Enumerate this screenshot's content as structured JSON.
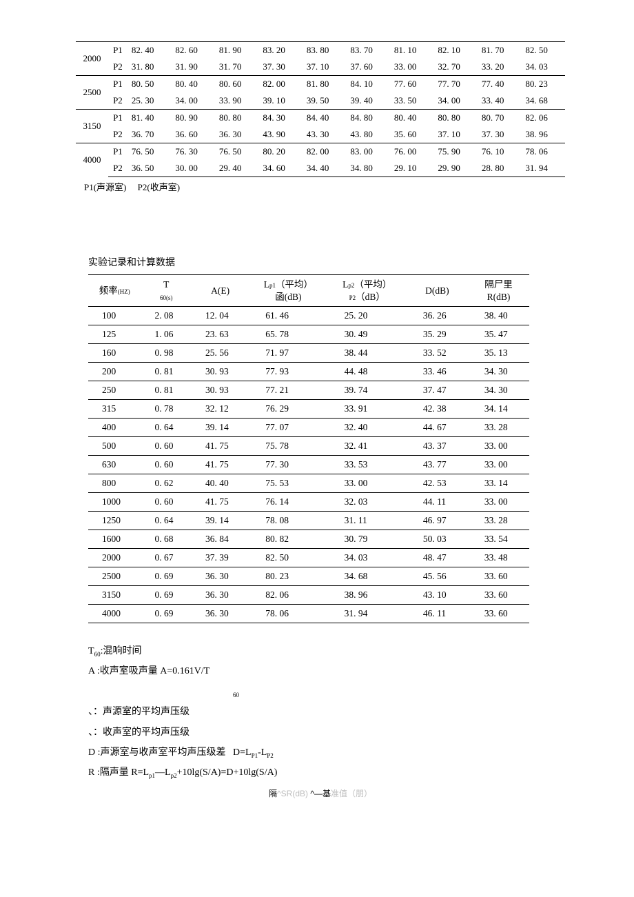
{
  "table1": {
    "groups": [
      {
        "freq": "2000",
        "rows": [
          {
            "p": "P1",
            "v": [
              "82. 40",
              "82. 60",
              "81. 90",
              "83. 20",
              "83. 80",
              "83. 70",
              "81. 10",
              "82. 10",
              "81. 70",
              "82. 50"
            ]
          },
          {
            "p": "P2",
            "v": [
              "31. 80",
              "31. 90",
              "31. 70",
              "37. 30",
              "37. 10",
              "37. 60",
              "33. 00",
              "32. 70",
              "33. 20",
              "34. 03"
            ]
          }
        ]
      },
      {
        "freq": "2500",
        "rows": [
          {
            "p": "P1",
            "v": [
              "80. 50",
              "80. 40",
              "80. 60",
              "82. 00",
              "81. 80",
              "84. 10",
              "77. 60",
              "77. 70",
              "77. 40",
              "80. 23"
            ]
          },
          {
            "p": "P2",
            "v": [
              "25. 30",
              "34. 00",
              "33. 90",
              "39. 10",
              "39. 50",
              "39. 40",
              "33. 50",
              "34. 00",
              "33. 40",
              "34. 68"
            ]
          }
        ]
      },
      {
        "freq": "3150",
        "rows": [
          {
            "p": "P1",
            "v": [
              "81. 40",
              "80. 90",
              "80. 80",
              "84. 30",
              "84. 40",
              "84. 80",
              "80. 40",
              "80. 80",
              "80. 70",
              "82. 06"
            ]
          },
          {
            "p": "P2",
            "v": [
              "36. 70",
              "36. 60",
              "36. 30",
              "43. 90",
              "43. 30",
              "43. 80",
              "35. 60",
              "37. 10",
              "37. 30",
              "38. 96"
            ]
          }
        ]
      },
      {
        "freq": "4000",
        "rows": [
          {
            "p": "P1",
            "v": [
              "76. 50",
              "76. 30",
              "76. 50",
              "80. 20",
              "82. 00",
              "83. 00",
              "76. 00",
              "75. 90",
              "76. 10",
              "78. 06"
            ]
          },
          {
            "p": "P2",
            "v": [
              "36. 50",
              "30. 00",
              "29. 40",
              "34. 60",
              "34. 40",
              "34. 80",
              "29. 10",
              "29. 90",
              "28. 80",
              "31. 94"
            ]
          }
        ]
      }
    ],
    "legend_p1": "P1(声源室)",
    "legend_p2": "P2(收声室)"
  },
  "table2": {
    "title": "实验记录和计算数据",
    "headers": {
      "h1": "频率",
      "h1_unit": "(HZ)",
      "h2": "T",
      "h2_sub": "60(s)",
      "h3": "A(E)",
      "h4a": "L",
      "h4b": "p1",
      "h4c": "（平均）",
      "h4d": "函(dB)",
      "h5a": "L",
      "h5b": "p2",
      "h5c": "（平均）",
      "h5_sub": "P2",
      "h5_unit": "（dB）",
      "h6": "D(dB)",
      "h7a": "隔尸里",
      "h7b": "R(dB)"
    },
    "rows": [
      [
        "100",
        "2. 08",
        "12. 04",
        "61. 46",
        "25. 20",
        "36. 26",
        "38. 40"
      ],
      [
        "125",
        "1. 06",
        "23. 63",
        "65. 78",
        "30. 49",
        "35. 29",
        "35. 47"
      ],
      [
        "160",
        "0. 98",
        "25. 56",
        "71. 97",
        "38. 44",
        "33. 52",
        "35. 13"
      ],
      [
        "200",
        "0. 81",
        "30. 93",
        "77. 93",
        "44. 48",
        "33. 46",
        "34. 30"
      ],
      [
        "250",
        "0. 81",
        "30. 93",
        "77. 21",
        "39. 74",
        "37. 47",
        "34. 30"
      ],
      [
        "315",
        "0. 78",
        "32. 12",
        "76. 29",
        "33. 91",
        "42. 38",
        "34. 14"
      ],
      [
        "400",
        "0. 64",
        "39. 14",
        "77. 07",
        "32. 40",
        "44. 67",
        "33. 28"
      ],
      [
        "500",
        "0. 60",
        "41. 75",
        "75. 78",
        "32. 41",
        "43. 37",
        "33. 00"
      ],
      [
        "630",
        "0. 60",
        "41. 75",
        "77. 30",
        "33. 53",
        "43. 77",
        "33. 00"
      ],
      [
        "800",
        "0. 62",
        "40. 40",
        "75. 53",
        "33. 00",
        "42. 53",
        "33. 14"
      ],
      [
        "1000",
        "0. 60",
        "41. 75",
        "76. 14",
        "32. 03",
        "44. 11",
        "33. 00"
      ],
      [
        "1250",
        "0. 64",
        "39. 14",
        "78. 08",
        "31. 11",
        "46. 97",
        "33. 28"
      ],
      [
        "1600",
        "0. 68",
        "36. 84",
        "80. 82",
        "30. 79",
        "50. 03",
        "33. 54"
      ],
      [
        "2000",
        "0. 67",
        "37. 39",
        "82. 50",
        "34. 03",
        "48. 47",
        "33. 48"
      ],
      [
        "2500",
        "0. 69",
        "36. 30",
        "80. 23",
        "34. 68",
        "45. 56",
        "33. 60"
      ],
      [
        "3150",
        "0. 69",
        "36. 30",
        "82. 06",
        "38. 96",
        "43. 10",
        "33. 60"
      ],
      [
        "4000",
        "0. 69",
        "36. 30",
        "78. 06",
        "31. 94",
        "46. 11",
        "33. 60"
      ]
    ]
  },
  "notes": {
    "n1a": "T",
    "n1b": "60",
    "n1c": ":混响时间",
    "n2": "A :收声室吸声量 A=0.161V/T",
    "n2b": "60",
    "n3": "、：声源室的平均声压级",
    "n4": "、：收声室的平均声压级",
    "n5a": "D :声源室与收声室平均声压级差",
    "n5b": "D=L",
    "n5c": "P1",
    "n5d": "-L",
    "n5e": "P2",
    "n6a": "R :隔声量 R=L",
    "n6b": "p1",
    "n6c": "—L",
    "n6d": "p2",
    "n6e": "+10lg(S/A)=D+10lg(S/A)"
  },
  "footer": {
    "t1": "隔",
    "t2": "^SR(dB) ",
    "t3": "^—基",
    "t4": "准值（朋）"
  }
}
